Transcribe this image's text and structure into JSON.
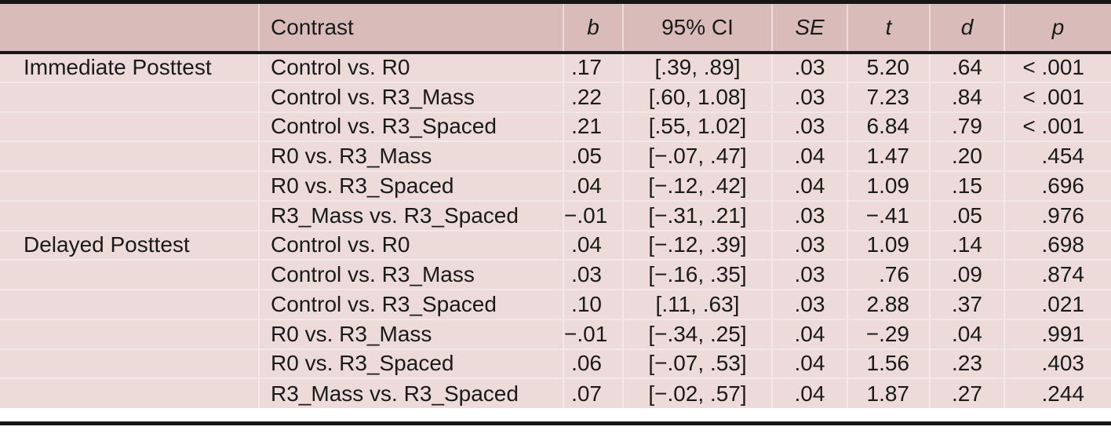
{
  "table": {
    "columns": [
      {
        "key": "section",
        "label": "",
        "italic": false
      },
      {
        "key": "contrast",
        "label": "Contrast",
        "italic": false
      },
      {
        "key": "b",
        "label": "b",
        "italic": true
      },
      {
        "key": "ci",
        "label": "95% CI",
        "italic": false
      },
      {
        "key": "se",
        "label": "SE",
        "italic": true
      },
      {
        "key": "t",
        "label": "t",
        "italic": true
      },
      {
        "key": "d",
        "label": "d",
        "italic": true
      },
      {
        "key": "p",
        "label": "p",
        "italic": true
      }
    ],
    "rows": [
      {
        "section": "Immediate Posttest",
        "contrast": "Control vs. R0",
        "b": ".17",
        "ci": "[.39, .89]",
        "se": ".03",
        "t": "5.20",
        "d": ".64",
        "p": "< .001"
      },
      {
        "section": "",
        "contrast": "Control vs. R3_Mass",
        "b": ".22",
        "ci": "[.60, 1.08]",
        "se": ".03",
        "t": "7.23",
        "d": ".84",
        "p": "< .001"
      },
      {
        "section": "",
        "contrast": "Control vs. R3_Spaced",
        "b": ".21",
        "ci": "[.55, 1.02]",
        "se": ".03",
        "t": "6.84",
        "d": ".79",
        "p": "< .001"
      },
      {
        "section": "",
        "contrast": "R0 vs. R3_Mass",
        "b": ".05",
        "ci": "[−.07, .47]",
        "se": ".04",
        "t": "1.47",
        "d": ".20",
        "p": ".454"
      },
      {
        "section": "",
        "contrast": "R0 vs. R3_Spaced",
        "b": ".04",
        "ci": "[−.12, .42]",
        "se": ".04",
        "t": "1.09",
        "d": ".15",
        "p": ".696"
      },
      {
        "section": "",
        "contrast": "R3_Mass vs. R3_Spaced",
        "b": "−.01",
        "ci": "[−.31, .21]",
        "se": ".03",
        "t": "−.41",
        "d": ".05",
        "p": ".976"
      },
      {
        "section": "Delayed Posttest",
        "contrast": "Control vs. R0",
        "b": ".04",
        "ci": "[−.12, .39]",
        "se": ".03",
        "t": "1.09",
        "d": ".14",
        "p": ".698"
      },
      {
        "section": "",
        "contrast": "Control vs. R3_Mass",
        "b": ".03",
        "ci": "[−.16, .35]",
        "se": ".03",
        "t": ".76",
        "d": ".09",
        "p": ".874"
      },
      {
        "section": "",
        "contrast": "Control vs. R3_Spaced",
        "b": ".10",
        "ci": "[.11, .63]",
        "se": ".03",
        "t": "2.88",
        "d": ".37",
        "p": ".021"
      },
      {
        "section": "",
        "contrast": "R0 vs. R3_Mass",
        "b": "−.01",
        "ci": "[−.34, .25]",
        "se": ".04",
        "t": "−.29",
        "d": ".04",
        "p": ".991"
      },
      {
        "section": "",
        "contrast": "R0 vs. R3_Spaced",
        "b": ".06",
        "ci": "[−.07, .53]",
        "se": ".04",
        "t": "1.56",
        "d": ".23",
        "p": ".403"
      },
      {
        "section": "",
        "contrast": "R3_Mass vs. R3_Spaced",
        "b": ".07",
        "ci": "[−.02, .57]",
        "se": ".04",
        "t": "1.87",
        "d": ".27",
        "p": ".244"
      }
    ]
  },
  "colors": {
    "header_bg": "#d9bcba",
    "body_bg": "#ecdbd8",
    "rule": "#161616",
    "text": "#1a1a1a"
  }
}
